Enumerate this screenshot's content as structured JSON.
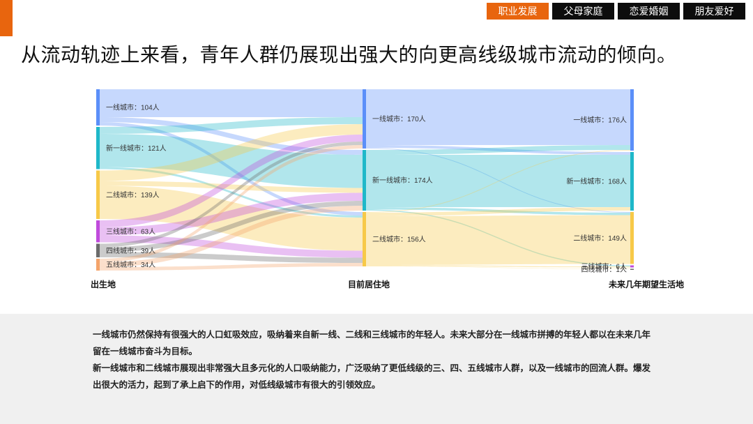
{
  "nav": {
    "tabs": [
      {
        "label": "职业发展",
        "active": true
      },
      {
        "label": "父母家庭",
        "active": false
      },
      {
        "label": "恋爱婚姻",
        "active": false
      },
      {
        "label": "朋友爱好",
        "active": false
      }
    ]
  },
  "headline": "从流动轨迹上来看，青年人群仍展现出强大的向更高线级城市流动的倾向。",
  "chart_data": {
    "type": "sankey",
    "columns": [
      "出生地",
      "目前居住地",
      "未来几年期望生活地"
    ],
    "nodes": [
      {
        "column": 0,
        "name": "一线城市",
        "value": 104,
        "label": "一线城市：104人"
      },
      {
        "column": 0,
        "name": "新一线城市",
        "value": 121,
        "label": "新一线城市：121人"
      },
      {
        "column": 0,
        "name": "二线城市",
        "value": 139,
        "label": "二线城市：139人"
      },
      {
        "column": 0,
        "name": "三线城市",
        "value": 63,
        "label": "三线城市：63人"
      },
      {
        "column": 0,
        "name": "四线城市",
        "value": 39,
        "label": "四线城市：39人"
      },
      {
        "column": 0,
        "name": "五线城市",
        "value": 34,
        "label": "五线城市：34人"
      },
      {
        "column": 1,
        "name": "一线城市",
        "value": 170,
        "label": "一线城市：170人"
      },
      {
        "column": 1,
        "name": "新一线城市",
        "value": 174,
        "label": "新一线城市：174人"
      },
      {
        "column": 1,
        "name": "二线城市",
        "value": 156,
        "label": "二线城市：156人"
      },
      {
        "column": 2,
        "name": "一线城市",
        "value": 176,
        "label": "一线城市：176人"
      },
      {
        "column": 2,
        "name": "新一线城市",
        "value": 168,
        "label": "新一线城市：168人"
      },
      {
        "column": 2,
        "name": "二线城市",
        "value": 149,
        "label": "二线城市：149人"
      },
      {
        "column": 2,
        "name": "三线城市",
        "value": 6,
        "label": "三线城市：6人"
      },
      {
        "column": 2,
        "name": "四线城市",
        "value": 1,
        "label": "四线城市：1人"
      }
    ],
    "links": [
      {
        "source": 0,
        "target": 6,
        "value": 80
      },
      {
        "source": 0,
        "target": 7,
        "value": 14
      },
      {
        "source": 0,
        "target": 8,
        "value": 10
      },
      {
        "source": 1,
        "target": 6,
        "value": 20
      },
      {
        "source": 1,
        "target": 7,
        "value": 95
      },
      {
        "source": 1,
        "target": 8,
        "value": 6
      },
      {
        "source": 2,
        "target": 6,
        "value": 30
      },
      {
        "source": 2,
        "target": 7,
        "value": 14
      },
      {
        "source": 2,
        "target": 8,
        "value": 95
      },
      {
        "source": 3,
        "target": 6,
        "value": 20
      },
      {
        "source": 3,
        "target": 7,
        "value": 23
      },
      {
        "source": 3,
        "target": 8,
        "value": 20
      },
      {
        "source": 4,
        "target": 6,
        "value": 10
      },
      {
        "source": 4,
        "target": 7,
        "value": 14
      },
      {
        "source": 4,
        "target": 8,
        "value": 15
      },
      {
        "source": 5,
        "target": 6,
        "value": 10
      },
      {
        "source": 5,
        "target": 7,
        "value": 14
      },
      {
        "source": 5,
        "target": 8,
        "value": 10
      },
      {
        "source": 6,
        "target": 9,
        "value": 160
      },
      {
        "source": 6,
        "target": 10,
        "value": 8
      },
      {
        "source": 6,
        "target": 11,
        "value": 2
      },
      {
        "source": 7,
        "target": 9,
        "value": 14
      },
      {
        "source": 7,
        "target": 10,
        "value": 150
      },
      {
        "source": 7,
        "target": 11,
        "value": 7
      },
      {
        "source": 7,
        "target": 12,
        "value": 3
      },
      {
        "source": 8,
        "target": 9,
        "value": 2
      },
      {
        "source": 8,
        "target": 10,
        "value": 10
      },
      {
        "source": 8,
        "target": 11,
        "value": 140
      },
      {
        "source": 8,
        "target": 12,
        "value": 3
      },
      {
        "source": 8,
        "target": 13,
        "value": 1
      }
    ],
    "colors": {
      "一线城市": "#5b8ff9",
      "新一线城市": "#1fb8c9",
      "二线城市": "#f7c948",
      "三线城市": "#c04bdc",
      "四线城市": "#6b6b6b",
      "五线城市": "#f4a46b"
    }
  },
  "summary": {
    "p1": "一线城市仍然保持有很强大的人口虹吸效应，吸纳着来自新一线、二线和三线城市的年轻人。未来大部分在一线城市拼搏的年轻人都以在未来几年留在一线城市奋斗为目标。",
    "p2": "新一线城市和二线城市展现出非常强大且多元化的人口吸纳能力，广泛吸纳了更低线级的三、四、五线城市人群，以及一线城市的回流人群。爆发出很大的活力，起到了承上启下的作用，对低线级城市有很大的引领效应。"
  }
}
